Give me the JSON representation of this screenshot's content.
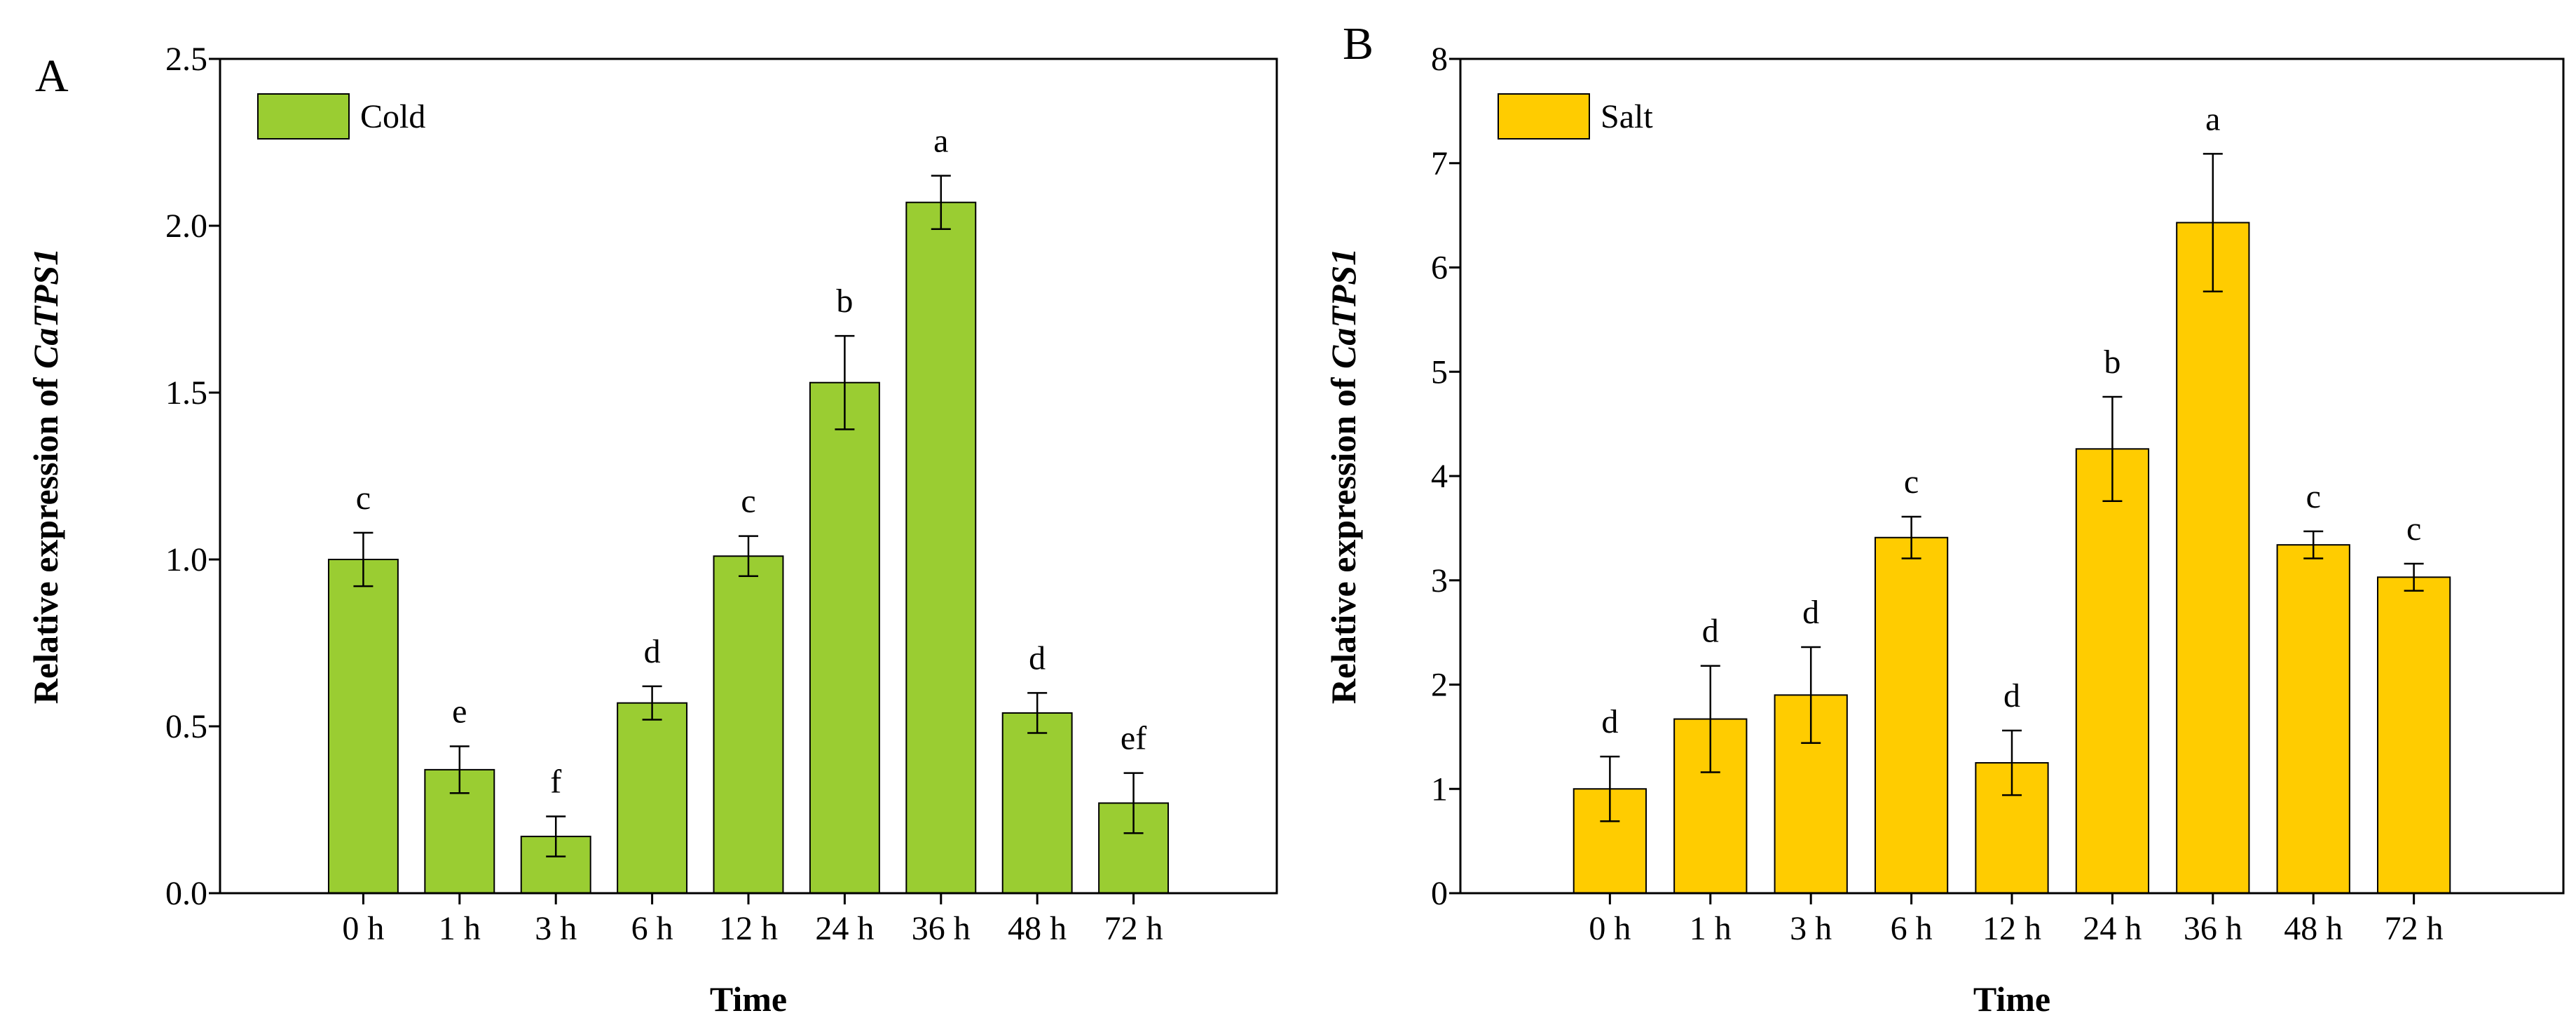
{
  "chart_data": [
    {
      "panel_label": "A",
      "type": "bar",
      "legend": "Cold",
      "color": "#9ACD32",
      "xlabel": "Time",
      "ylabel_prefix": "Relative expression of",
      "ylabel_gene": "CaTPS1",
      "ylim": [
        0,
        2.5
      ],
      "yticks": [
        "0.0",
        "0.5",
        "1.0",
        "1.5",
        "2.0",
        "2.5"
      ],
      "ytick_values": [
        0,
        0.5,
        1.0,
        1.5,
        2.0,
        2.5
      ],
      "categories": [
        "0 h",
        "1 h",
        "3 h",
        "6 h",
        "12 h",
        "24 h",
        "36 h",
        "48 h",
        "72 h"
      ],
      "values": [
        1.0,
        0.37,
        0.17,
        0.57,
        1.01,
        1.53,
        2.07,
        0.54,
        0.27
      ],
      "errors": [
        0.08,
        0.07,
        0.06,
        0.05,
        0.06,
        0.14,
        0.08,
        0.06,
        0.09
      ],
      "letters": [
        "c",
        "e",
        "f",
        "d",
        "c",
        "b",
        "a",
        "d",
        "ef"
      ]
    },
    {
      "panel_label": "B",
      "type": "bar",
      "legend": "Salt",
      "color": "#FFCC00",
      "xlabel": "Time",
      "ylabel_prefix": "Relative expression of",
      "ylabel_gene": "CaTPS1",
      "ylim": [
        0,
        8
      ],
      "yticks": [
        "0",
        "1",
        "2",
        "3",
        "4",
        "5",
        "6",
        "7",
        "8"
      ],
      "ytick_values": [
        0,
        1,
        2,
        3,
        4,
        5,
        6,
        7,
        8
      ],
      "categories": [
        "0 h",
        "1 h",
        "3 h",
        "6 h",
        "12 h",
        "24 h",
        "36 h",
        "48 h",
        "72 h"
      ],
      "values": [
        1.0,
        1.67,
        1.9,
        3.41,
        1.25,
        4.26,
        6.43,
        3.34,
        3.03
      ],
      "errors": [
        0.31,
        0.51,
        0.46,
        0.2,
        0.31,
        0.5,
        0.66,
        0.13,
        0.13
      ],
      "letters": [
        "d",
        "d",
        "d",
        "c",
        "d",
        "b",
        "a",
        "c",
        "c"
      ]
    }
  ]
}
